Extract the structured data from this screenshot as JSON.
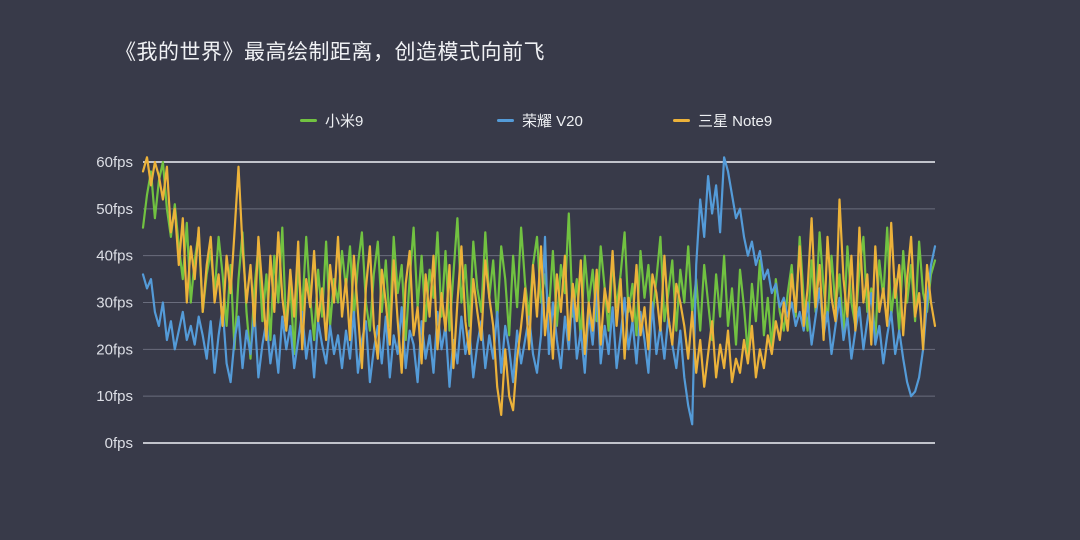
{
  "page": {
    "colors": {
      "background": "#383a49",
      "title_text": "#f0f1f4",
      "tick_text": "#dcdee5",
      "gridline_bright": "#d5d7de",
      "gridline_dim": "#6a6d7d"
    }
  },
  "chart_data": {
    "type": "line",
    "title": "《我的世界》最高绘制距离，创造模式向前飞",
    "xlabel": "",
    "ylabel": "fps",
    "ylim": [
      0,
      62
    ],
    "yticks": [
      "0fps",
      "10fps",
      "20fps",
      "30fps",
      "40fps",
      "50fps",
      "60fps"
    ],
    "grid": "horizontal",
    "legend_position": "top",
    "series": [
      {
        "name": "小米9",
        "color": "#71c241",
        "values": [
          46,
          53,
          58,
          48,
          56,
          60,
          50,
          44,
          51,
          42,
          35,
          47,
          30,
          39,
          45,
          28,
          36,
          41,
          32,
          44,
          36,
          25,
          38,
          20,
          35,
          45,
          28,
          18,
          33,
          42,
          26,
          36,
          22,
          40,
          30,
          46,
          24,
          34,
          19,
          38,
          28,
          44,
          31,
          22,
          37,
          27,
          43,
          25,
          35,
          30,
          41,
          33,
          42,
          27,
          38,
          45,
          30,
          24,
          36,
          43,
          28,
          39,
          25,
          44,
          32,
          38,
          22,
          35,
          46,
          29,
          40,
          26,
          37,
          31,
          45,
          27,
          41,
          24,
          36,
          48,
          30,
          38,
          25,
          43,
          33,
          28,
          45,
          31,
          39,
          26,
          42,
          35,
          23,
          40,
          29,
          46,
          34,
          27,
          38,
          44,
          30,
          36,
          28,
          41,
          25,
          38,
          32,
          49,
          27,
          35,
          22,
          40,
          30,
          37,
          26,
          42,
          33,
          24,
          39,
          29,
          36,
          45,
          28,
          34,
          23,
          41,
          31,
          38,
          27,
          35,
          44,
          26,
          32,
          39,
          24,
          37,
          30,
          42,
          28,
          35,
          24,
          38,
          30,
          22,
          36,
          27,
          40,
          25,
          33,
          21,
          37,
          29,
          19,
          34,
          26,
          39,
          23,
          31,
          20,
          35,
          28,
          24,
          32,
          38,
          27,
          44,
          31,
          24,
          39,
          28,
          45,
          33,
          26,
          40,
          29,
          36,
          23,
          42,
          30,
          25,
          37,
          44,
          28,
          33,
          22,
          39,
          31,
          46,
          27,
          35,
          24,
          41,
          30,
          38,
          26,
          43,
          32,
          28,
          36,
          39
        ]
      },
      {
        "name": "荣耀 V20",
        "color": "#549bd8",
        "values": [
          36,
          33,
          35,
          28,
          25,
          30,
          22,
          26,
          20,
          24,
          28,
          22,
          25,
          21,
          27,
          23,
          18,
          26,
          15,
          23,
          29,
          17,
          13,
          22,
          27,
          16,
          24,
          19,
          28,
          14,
          21,
          26,
          17,
          23,
          15,
          27,
          20,
          25,
          16,
          22,
          28,
          18,
          24,
          14,
          26,
          21,
          17,
          25,
          19,
          23,
          16,
          24,
          18,
          28,
          15,
          22,
          26,
          13,
          20,
          25,
          17,
          27,
          14,
          23,
          19,
          29,
          16,
          24,
          21,
          13,
          26,
          18,
          23,
          15,
          28,
          20,
          25,
          12,
          22,
          17,
          27,
          19,
          24,
          14,
          21,
          26,
          16,
          23,
          18,
          28,
          15,
          25,
          20,
          13,
          24,
          17,
          22,
          27,
          19,
          15,
          23,
          44,
          19,
          30,
          22,
          16,
          27,
          20,
          32,
          18,
          24,
          15,
          28,
          21,
          33,
          17,
          25,
          19,
          29,
          16,
          23,
          31,
          20,
          26,
          17,
          28,
          22,
          15,
          30,
          19,
          25,
          18,
          27,
          21,
          16,
          24,
          14,
          8,
          4,
          38,
          52,
          44,
          57,
          49,
          55,
          45,
          61,
          58,
          53,
          48,
          50,
          44,
          40,
          43,
          38,
          41,
          35,
          37,
          32,
          34,
          29,
          31,
          27,
          30,
          25,
          28,
          24,
          30,
          21,
          27,
          33,
          23,
          28,
          19,
          25,
          31,
          22,
          27,
          18,
          24,
          29,
          20,
          26,
          32,
          21,
          25,
          17,
          23,
          28,
          19,
          24,
          18,
          13,
          10,
          11,
          14,
          20,
          30,
          38,
          42
        ]
      },
      {
        "name": "三星 Note9",
        "color": "#ecb23a",
        "values": [
          58,
          61,
          55,
          60,
          57,
          52,
          59,
          45,
          50,
          38,
          48,
          30,
          42,
          35,
          46,
          28,
          38,
          44,
          30,
          36,
          25,
          40,
          32,
          45,
          59,
          42,
          30,
          38,
          25,
          44,
          33,
          22,
          40,
          28,
          45,
          31,
          24,
          37,
          27,
          43,
          20,
          35,
          29,
          41,
          26,
          33,
          22,
          38,
          30,
          44,
          27,
          35,
          22,
          40,
          28,
          16,
          33,
          42,
          25,
          18,
          37,
          30,
          21,
          39,
          26,
          15,
          34,
          41,
          23,
          29,
          17,
          36,
          27,
          40,
          20,
          32,
          24,
          38,
          16,
          30,
          42,
          26,
          19,
          35,
          28,
          22,
          39,
          31,
          25,
          12,
          6,
          20,
          10,
          7,
          18,
          25,
          33,
          20,
          38,
          27,
          42,
          23,
          31,
          18,
          36,
          28,
          40,
          22,
          34,
          26,
          39,
          19,
          30,
          24,
          37,
          21,
          33,
          28,
          41,
          25,
          35,
          18,
          31,
          26,
          38,
          23,
          29,
          20,
          36,
          32,
          24,
          40,
          27,
          21,
          34,
          30,
          25,
          18,
          28,
          15,
          22,
          12,
          19,
          26,
          14,
          21,
          16,
          24,
          13,
          18,
          15,
          22,
          17,
          25,
          14,
          20,
          16,
          23,
          19,
          26,
          22,
          30,
          24,
          36,
          28,
          42,
          25,
          33,
          48,
          29,
          38,
          22,
          44,
          31,
          26,
          52,
          35,
          27,
          40,
          24,
          46,
          30,
          36,
          21,
          42,
          28,
          33,
          25,
          47,
          31,
          38,
          23,
          35,
          44,
          27,
          32,
          20,
          38,
          30,
          25
        ]
      }
    ]
  }
}
